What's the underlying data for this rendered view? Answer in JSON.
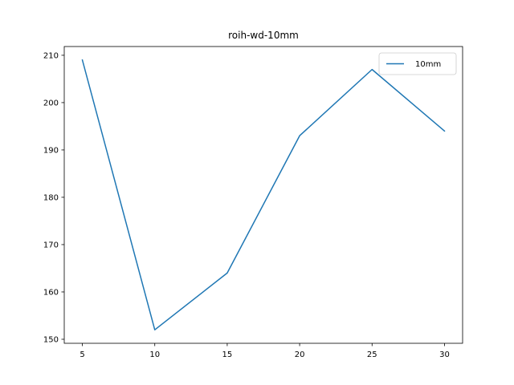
{
  "chart_data": {
    "type": "line",
    "title": "roih-wd-10mm",
    "xlabel": "",
    "ylabel": "",
    "x": [
      5,
      10,
      15,
      20,
      25,
      30
    ],
    "series": [
      {
        "name": "10mm",
        "values": [
          209,
          152,
          164,
          193,
          207,
          194
        ],
        "color": "#1f77b4"
      }
    ],
    "xticks": [
      5,
      10,
      15,
      20,
      25,
      30
    ],
    "yticks": [
      150,
      160,
      170,
      180,
      190,
      200,
      210
    ],
    "xlim": [
      3.75,
      31.25
    ],
    "ylim": [
      149.15,
      211.85
    ],
    "grid": false,
    "legend_position": "top-right"
  }
}
